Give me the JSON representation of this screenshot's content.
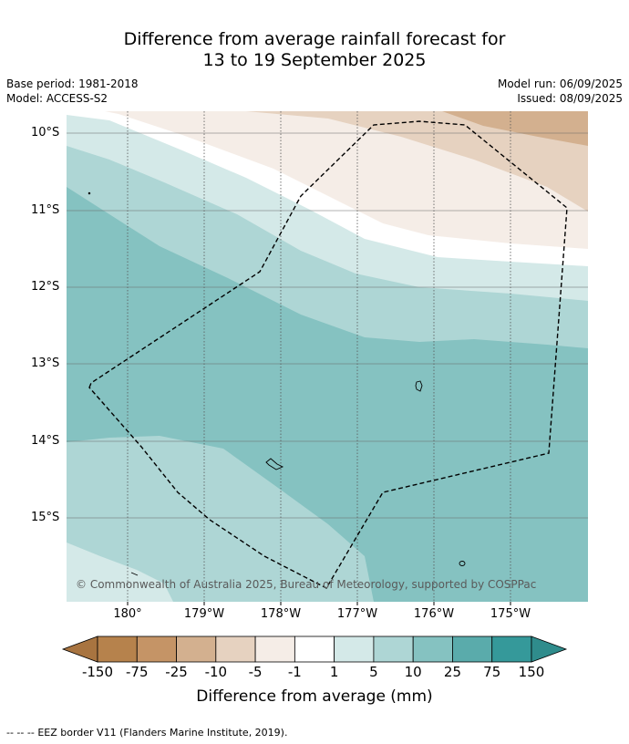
{
  "header": {
    "title_line1": "Difference from average rainfall forecast for",
    "title_line2": "13 to 19 September 2025",
    "base_period": "Base period: 1981-2018",
    "model": "Model: ACCESS-S2",
    "model_run": "Model run: 06/09/2025",
    "issued": "Issued: 08/09/2025"
  },
  "map": {
    "lat_labels": [
      "10°S",
      "11°S",
      "12°S",
      "13°S",
      "14°S",
      "15°S"
    ],
    "lon_labels": [
      "180°",
      "179°W",
      "178°W",
      "177°W",
      "176°W",
      "175°W"
    ],
    "copyright": "© Commonwealth of Australia 2025, Bureau of Meteorology, supported by COSPPac",
    "colors": {
      "brown_medium": "#d3b08f",
      "brown_light": "#e6d2c0",
      "brown_pale": "#f5ede7",
      "white": "#ffffff",
      "teal_pale": "#d4e9e8",
      "teal_light": "#aed6d5",
      "teal_medium": "#85c2c1"
    }
  },
  "colorbar": {
    "ticks": [
      "-150",
      "-75",
      "-25",
      "-10",
      "-5",
      "-1",
      "1",
      "5",
      "10",
      "25",
      "75",
      "150"
    ],
    "colors": [
      "#a87440",
      "#b6824c",
      "#c59466",
      "#d3b08f",
      "#e6d2c0",
      "#f5ede7",
      "#ffffff",
      "#d4e9e8",
      "#aed6d5",
      "#85c2c1",
      "#5aabab",
      "#35999a",
      "#2f8c8c"
    ],
    "title": "Difference from average (mm)"
  },
  "footer": {
    "legend_symbol": "--  --  --",
    "legend_text": "EEZ border V11 (Flanders Marine Institute, 2019)."
  }
}
